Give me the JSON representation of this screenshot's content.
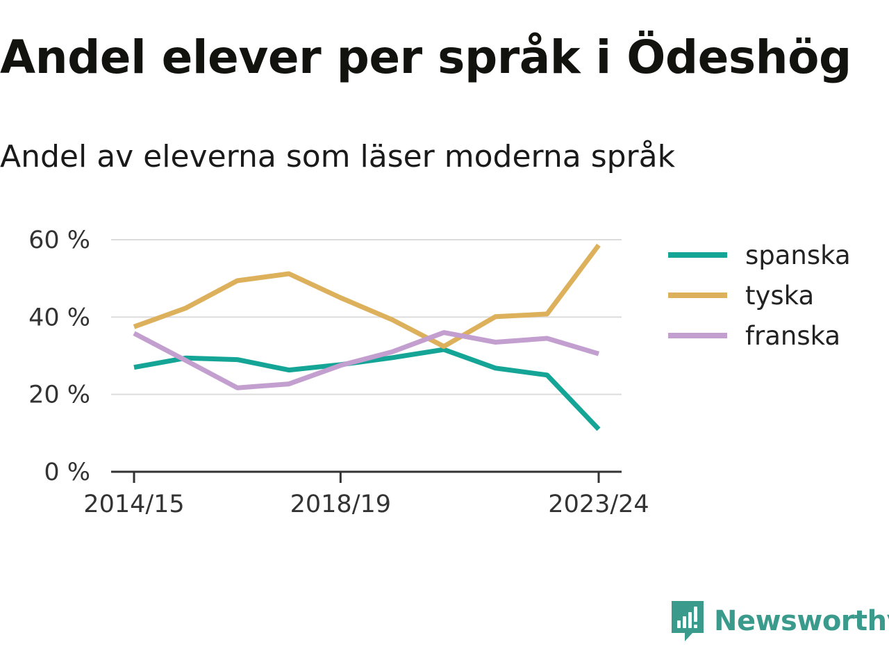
{
  "title": "Andel elever per språk i Ödeshög",
  "subtitle": "Andel av eleverna som läser moderna språk",
  "brand": {
    "name": "Newsworthy",
    "icon": "newsworthy-logo-icon",
    "color": "#3a9a8c"
  },
  "chart_data": {
    "type": "line",
    "x": [
      "2014/15",
      "2015/16",
      "2016/17",
      "2017/18",
      "2018/19",
      "2019/20",
      "2020/21",
      "2021/22",
      "2022/23",
      "2023/24"
    ],
    "x_tick_labels": [
      "2014/15",
      "2018/19",
      "2023/24"
    ],
    "y_ticks": [
      0,
      20,
      40,
      60
    ],
    "y_tick_labels": [
      "0 %",
      "20 %",
      "40 %",
      "60 %"
    ],
    "ylim": [
      0,
      60
    ],
    "grid": true,
    "legend": "right",
    "series": [
      {
        "name": "spanska",
        "color": "#14a597",
        "values": [
          27,
          29.4,
          29,
          26.3,
          27.7,
          29.5,
          31.6,
          26.8,
          25,
          11
        ]
      },
      {
        "name": "tyska",
        "color": "#ddb05c",
        "values": [
          37.5,
          42.3,
          49.4,
          51.2,
          45,
          39.3,
          32.4,
          40.1,
          40.8,
          58.6
        ]
      },
      {
        "name": "franska",
        "color": "#c39fd0",
        "values": [
          35.8,
          28.8,
          21.7,
          22.7,
          27.5,
          31,
          36,
          33.5,
          34.5,
          30.5
        ]
      }
    ]
  }
}
